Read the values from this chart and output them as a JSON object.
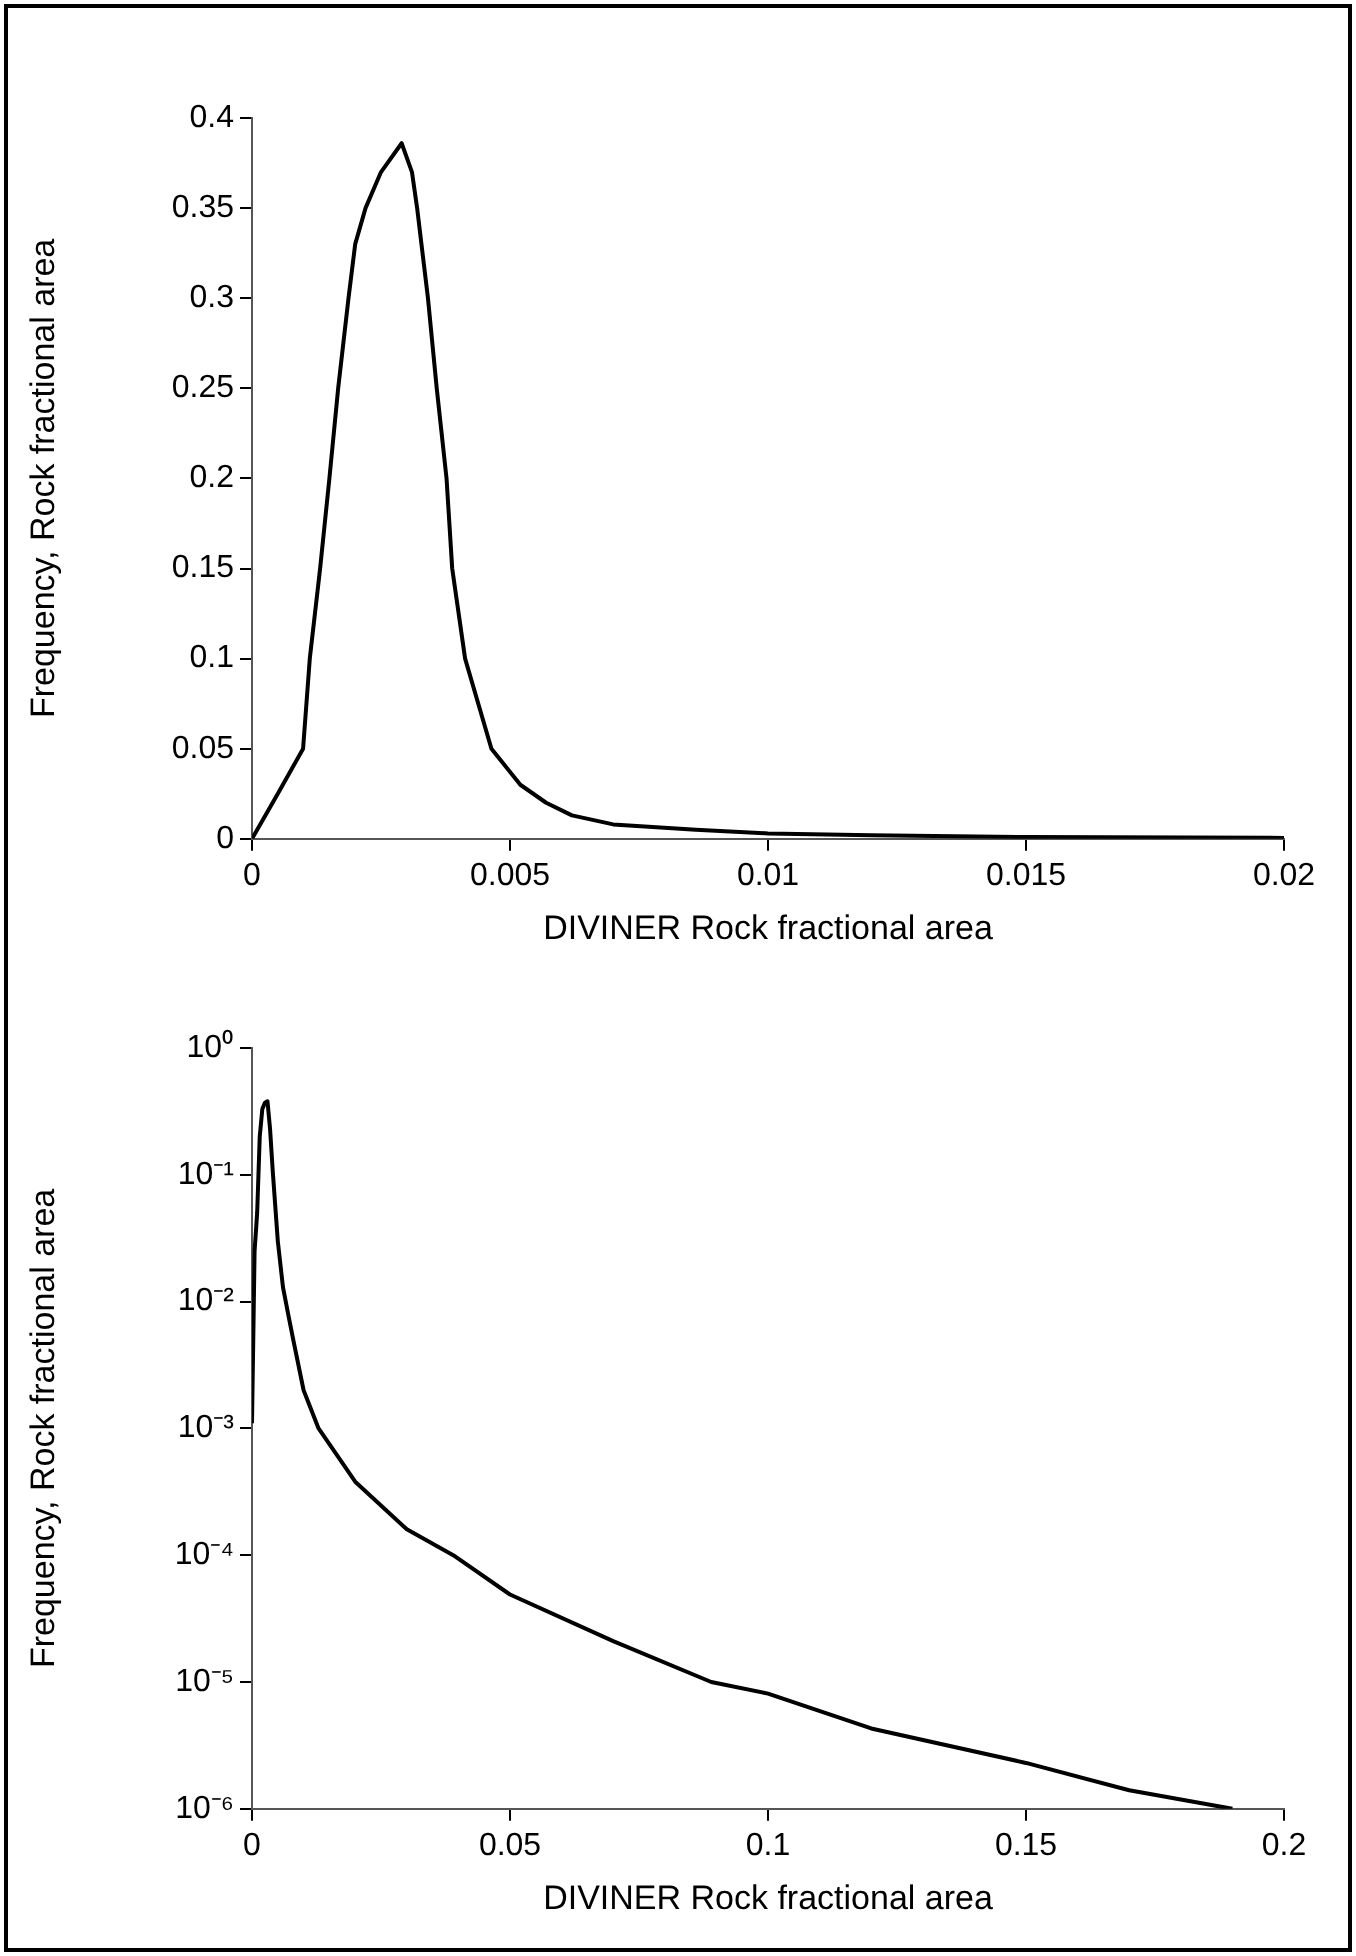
{
  "chart_data": [
    {
      "type": "line",
      "xlabel": "DIVINER Rock fractional area",
      "ylabel": "Frequency, Rock fractional area",
      "color": "#000000",
      "grid": false,
      "marker": "none",
      "x": [
        0,
        0.0005,
        0.00099,
        0.00112,
        0.00132,
        0.0015,
        0.00167,
        0.00187,
        0.002,
        0.0022,
        0.0025,
        0.0029,
        0.0031,
        0.0032,
        0.00341,
        0.00358,
        0.00377,
        0.00388,
        0.00413,
        0.00464,
        0.0052,
        0.0057,
        0.0062,
        0.007,
        0.0086,
        0.01,
        0.012,
        0.015,
        0.02
      ],
      "values": [
        0,
        0.025,
        0.05,
        0.1,
        0.15,
        0.2,
        0.25,
        0.3,
        0.33,
        0.35,
        0.37,
        0.386,
        0.37,
        0.35,
        0.3,
        0.25,
        0.2,
        0.15,
        0.1,
        0.05,
        0.03,
        0.02,
        0.013,
        0.008,
        0.005,
        0.003,
        0.002,
        0.001,
        0.0005
      ],
      "xlim": [
        0,
        0.02
      ],
      "xticks": [
        0,
        0.005,
        0.01,
        0.015,
        0.02
      ],
      "ylim": [
        0,
        0.4
      ],
      "yticks": [
        0,
        0.05,
        0.1,
        0.15,
        0.2,
        0.25,
        0.3,
        0.35,
        0.4
      ]
    },
    {
      "type": "line",
      "xlabel": "DIVINER Rock fractional area",
      "ylabel": "Frequency, Rock fractional area",
      "color": "#000000",
      "grid": false,
      "marker": "none",
      "log": "y",
      "x": [
        0,
        0.0005,
        0.001,
        0.0015,
        0.002,
        0.0025,
        0.003,
        0.0035,
        0.004,
        0.005,
        0.006,
        0.007,
        0.008,
        0.01,
        0.0129,
        0.02,
        0.03,
        0.039,
        0.05,
        0.07,
        0.089,
        0.1,
        0.12,
        0.15,
        0.17,
        0.19
      ],
      "values": [
        0.0011,
        0.025,
        0.05,
        0.2,
        0.33,
        0.37,
        0.38,
        0.23,
        0.11,
        0.03,
        0.013,
        0.008,
        0.005,
        0.002,
        0.001,
        0.00038,
        0.00016,
        0.0001,
        4.9e-05,
        2.1e-05,
        1e-05,
        8.1e-06,
        4.3e-06,
        2.3e-06,
        1.4e-06,
        1e-06
      ],
      "xlim": [
        0,
        0.2
      ],
      "xticks": [
        0,
        0.05,
        0.1,
        0.15,
        0.2
      ],
      "ylim": [
        1e-06,
        1
      ],
      "yticks": [
        {
          "value": 1e-06,
          "label": "10⁻⁶"
        },
        {
          "value": 1e-05,
          "label": "10⁻⁵"
        },
        {
          "value": 0.0001,
          "label": "10⁻⁴"
        },
        {
          "value": 0.001,
          "label": "10⁻³"
        },
        {
          "value": 0.01,
          "label": "10⁻²"
        },
        {
          "value": 0.1,
          "label": "10⁻¹"
        },
        {
          "value": 1,
          "label": "10⁰"
        }
      ]
    }
  ]
}
